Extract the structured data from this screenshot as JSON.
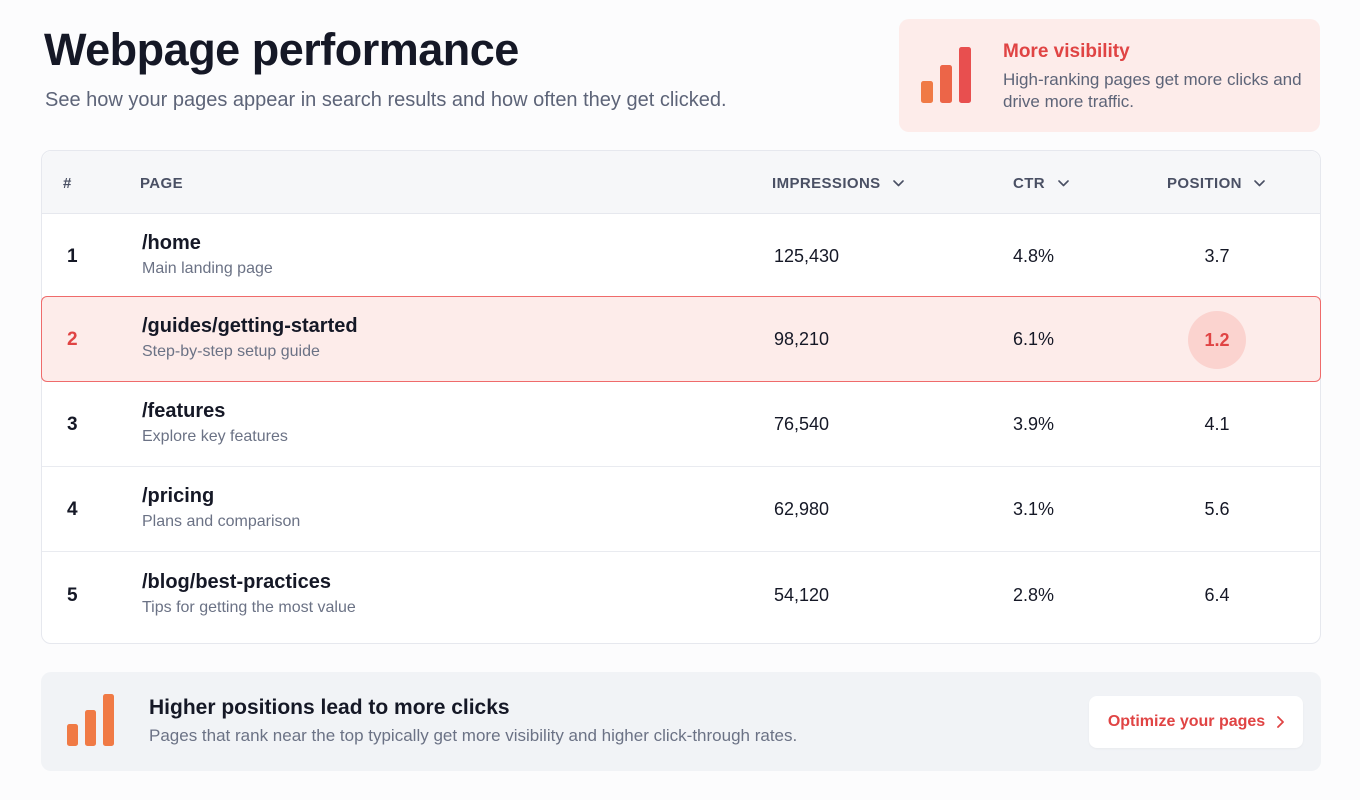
{
  "header": {
    "title": "Webpage performance",
    "subtitle": "See how your pages appear in search results and how often they get clicked."
  },
  "info_card": {
    "icon": "bar-chart-icon",
    "title": "More visibility",
    "text": "High-ranking pages get more clicks and drive more traffic."
  },
  "table": {
    "columns": {
      "num": "#",
      "page": "PAGE",
      "impressions": "IMPRESSIONS",
      "ctr": "CTR",
      "position": "POSITION"
    },
    "sort_icon": "chevron-down-icon",
    "rows": [
      {
        "num": "1",
        "page": "/home",
        "desc": "Main landing page",
        "impressions": "125,430",
        "ctr": "4.8%",
        "position": "3.7"
      },
      {
        "num": "2",
        "page": "/guides/getting-started",
        "desc": "Step-by-step setup guide",
        "impressions": "98,210",
        "ctr": "6.1%",
        "position": "1.2"
      },
      {
        "num": "3",
        "page": "/features",
        "desc": "Explore key features",
        "impressions": "76,540",
        "ctr": "3.9%",
        "position": "4.1"
      },
      {
        "num": "4",
        "page": "/pricing",
        "desc": "Plans and comparison",
        "impressions": "62,980",
        "ctr": "3.1%",
        "position": "5.6"
      },
      {
        "num": "5",
        "page": "/blog/best-practices",
        "desc": "Tips for getting the most value",
        "impressions": "54,120",
        "ctr": "2.8%",
        "position": "6.4"
      }
    ],
    "highlighted_row": 1
  },
  "footer": {
    "icon": "bar-chart-icon",
    "title": "Higher positions lead to more clicks",
    "text": "Pages that rank near the top typically get more visibility and higher click-through rates.",
    "button_label": "Optimize your pages",
    "button_icon": "chevron-right-icon"
  },
  "colors": {
    "accent": "#e04444",
    "accent_soft": "#fdecea",
    "bar_orange": "#f07a45",
    "bar_red": "#e84f4f"
  }
}
